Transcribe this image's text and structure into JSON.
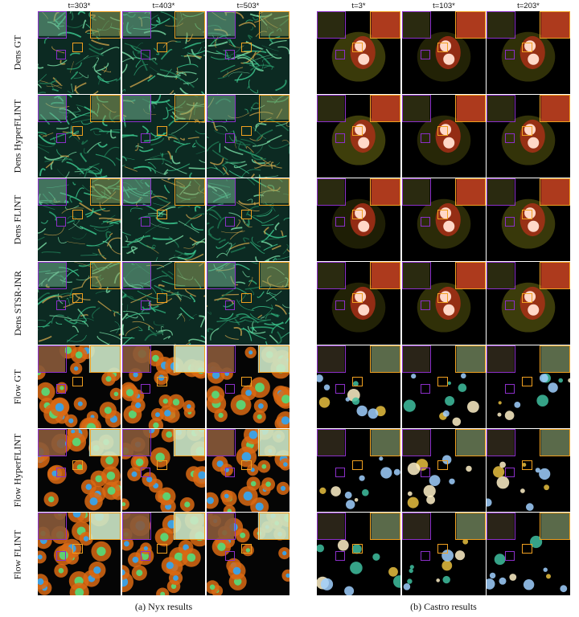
{
  "nyx": {
    "times": [
      "t=303*",
      "t=403*",
      "t=503*"
    ],
    "caption": "(a) Nyx results"
  },
  "castro": {
    "times": [
      "t=3*",
      "t=103*",
      "t=203*"
    ],
    "caption": "(b) Castro results"
  },
  "rows": [
    "Dens GT",
    "Dens HyperFLINT",
    "Dens FLINT",
    "Dens STSR-INR",
    "Flow GT",
    "Flow HyperFLINT",
    "Flow FLINT"
  ],
  "colors": {
    "inset_purple": "#8b2fc9",
    "inset_orange": "#f0a020",
    "nyx_dens": "#1f7a55",
    "nyx_flow": "#d96a14",
    "castro_dens_core": "#ff5a3c",
    "castro_flow": "#fff1c8"
  }
}
